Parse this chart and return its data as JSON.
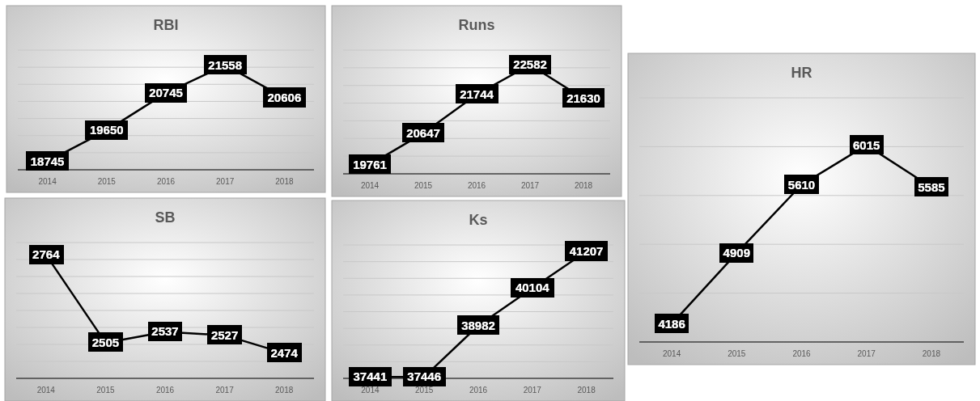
{
  "chart_data": [
    {
      "type": "line",
      "title": "RBI",
      "categories": [
        "2014",
        "2015",
        "2016",
        "2017",
        "2018"
      ],
      "values": [
        18745,
        19650,
        20745,
        21558,
        20606
      ],
      "color": "#000000",
      "data_labels": true,
      "grid": "y",
      "ylim": [
        18500,
        22000
      ],
      "yticks": [
        {
          "value": 18500,
          "label": null
        },
        {
          "value": 19000,
          "label": null
        },
        {
          "value": 19500,
          "label": null
        },
        {
          "value": 20000,
          "label": null
        },
        {
          "value": 20500,
          "label": null
        },
        {
          "value": 21000,
          "label": null
        },
        {
          "value": 21500,
          "label": null
        },
        {
          "value": 22000,
          "label": null
        }
      ]
    },
    {
      "type": "line",
      "title": "Runs",
      "categories": [
        "2014",
        "2015",
        "2016",
        "2017",
        "2018"
      ],
      "values": [
        19761,
        20647,
        21744,
        22582,
        21630
      ],
      "color": "#000000",
      "data_labels": true,
      "grid": "y",
      "ylim": [
        19500,
        23000
      ],
      "yticks": [
        {
          "value": 19500,
          "label": null
        },
        {
          "value": 20000,
          "label": null
        },
        {
          "value": 20500,
          "label": null
        },
        {
          "value": 21000,
          "label": null
        },
        {
          "value": 21500,
          "label": null
        },
        {
          "value": 22000,
          "label": null
        },
        {
          "value": 22500,
          "label": null
        },
        {
          "value": 23000,
          "label": null
        }
      ]
    },
    {
      "type": "line",
      "title": "HR",
      "categories": [
        "2014",
        "2015",
        "2016",
        "2017",
        "2018"
      ],
      "values": [
        4186,
        4909,
        5610,
        6015,
        5585
      ],
      "color": "#000000",
      "data_labels": true,
      "grid": "y",
      "ylim": [
        4000,
        6500
      ],
      "yticks": [
        {
          "value": 4000,
          "label": null
        },
        {
          "value": 4500,
          "label": null
        },
        {
          "value": 5000,
          "label": null
        },
        {
          "value": 5500,
          "label": null
        },
        {
          "value": 6000,
          "label": null
        },
        {
          "value": 6500,
          "label": null
        }
      ]
    },
    {
      "type": "line",
      "title": "SB",
      "categories": [
        "2014",
        "2015",
        "2016",
        "2017",
        "2018"
      ],
      "values": [
        2764,
        2505,
        2537,
        2527,
        2474
      ],
      "color": "#000000",
      "data_labels": true,
      "grid": "y",
      "ylim": [
        2400,
        2800
      ],
      "yticks": [
        {
          "value": 2400,
          "label": null
        },
        {
          "value": 2450,
          "label": null
        },
        {
          "value": 2500,
          "label": null
        },
        {
          "value": 2550,
          "label": null
        },
        {
          "value": 2600,
          "label": null
        },
        {
          "value": 2650,
          "label": null
        },
        {
          "value": 2700,
          "label": null
        },
        {
          "value": 2750,
          "label": null
        },
        {
          "value": 2800,
          "label": null
        }
      ]
    },
    {
      "type": "line",
      "title": "Ks",
      "categories": [
        "2014",
        "2015",
        "2016",
        "2017",
        "2018"
      ],
      "values": [
        37441,
        37446,
        38982,
        40104,
        41207
      ],
      "color": "#000000",
      "data_labels": true,
      "grid": "y",
      "ylim": [
        37400,
        41400
      ],
      "yticks": [
        {
          "value": 37400,
          "label": null
        },
        {
          "value": 37900,
          "label": null
        },
        {
          "value": 38400,
          "label": null
        },
        {
          "value": 38900,
          "label": null
        },
        {
          "value": 39400,
          "label": null
        },
        {
          "value": 39900,
          "label": null
        },
        {
          "value": 40400,
          "label": null
        },
        {
          "value": 40900,
          "label": null
        },
        {
          "value": 41400,
          "label": null
        }
      ]
    }
  ]
}
